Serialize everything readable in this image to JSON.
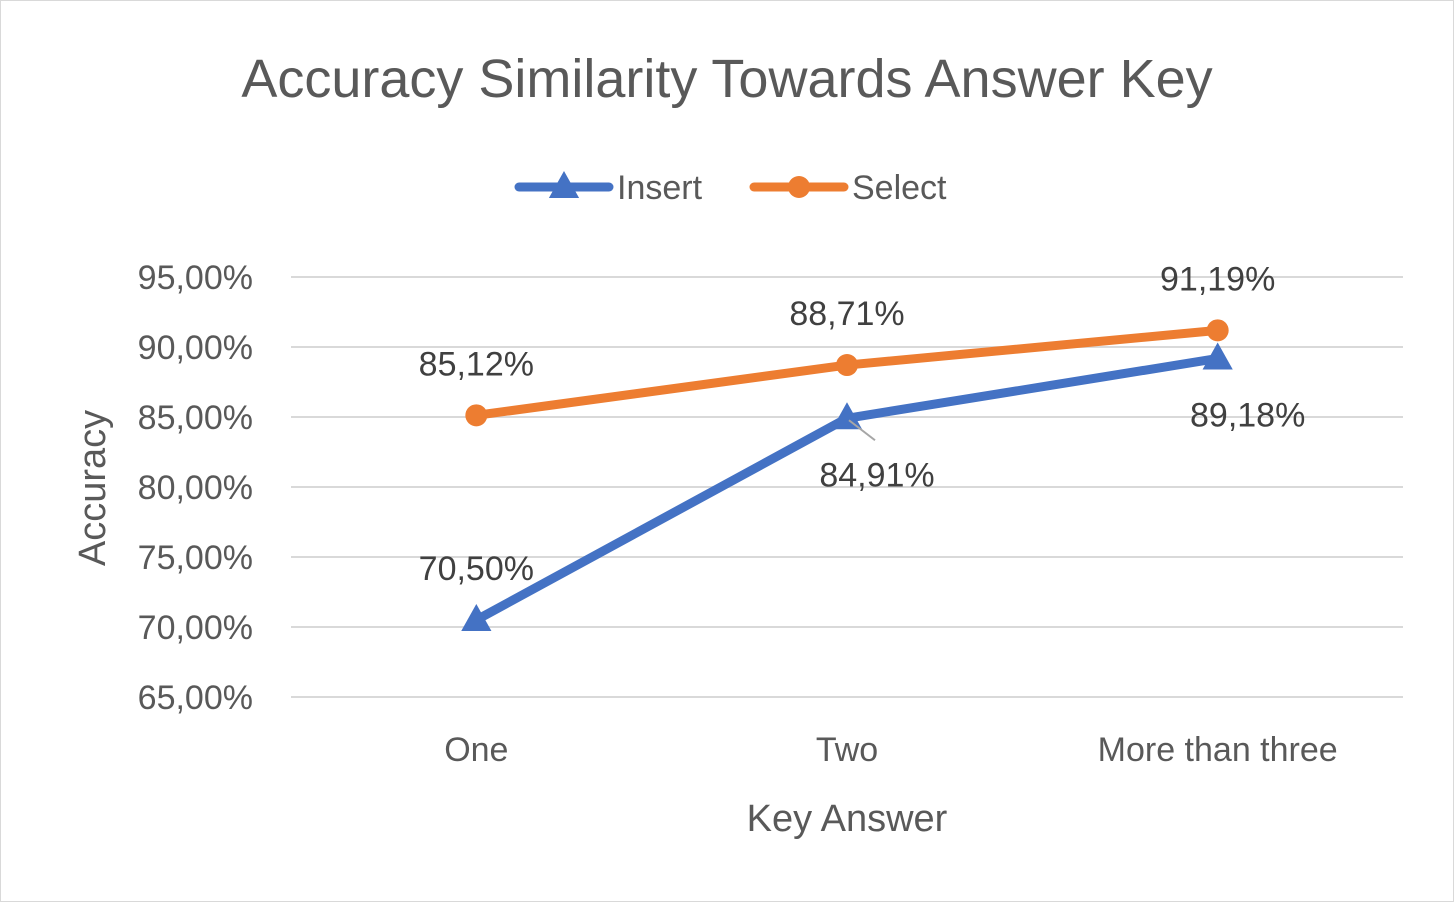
{
  "chart_data": {
    "type": "line",
    "title": "Accuracy Similarity Towards Answer Key",
    "xlabel": "Key Answer",
    "ylabel": "Accuracy",
    "categories": [
      "One",
      "Two",
      "More than three"
    ],
    "ylim": [
      65,
      95
    ],
    "yticks": [
      65,
      70,
      75,
      80,
      85,
      90,
      95
    ],
    "ytick_labels": [
      "65,00%",
      "70,00%",
      "75,00%",
      "80,00%",
      "85,00%",
      "90,00%",
      "95,00%"
    ],
    "grid": true,
    "legend_position": "top",
    "series": [
      {
        "name": "Insert",
        "color": "#4472c4",
        "marker": "triangle",
        "values": [
          70.5,
          84.91,
          89.18
        ],
        "labels": [
          "70,50%",
          "84,91%",
          "89,18%"
        ],
        "label_placement": [
          "above",
          "below-right",
          "below-right"
        ]
      },
      {
        "name": "Select",
        "color": "#ed7d31",
        "marker": "circle",
        "values": [
          85.12,
          88.71,
          91.19
        ],
        "labels": [
          "85,12%",
          "88,71%",
          "91,19%"
        ],
        "label_placement": [
          "above",
          "above",
          "above"
        ]
      }
    ]
  }
}
